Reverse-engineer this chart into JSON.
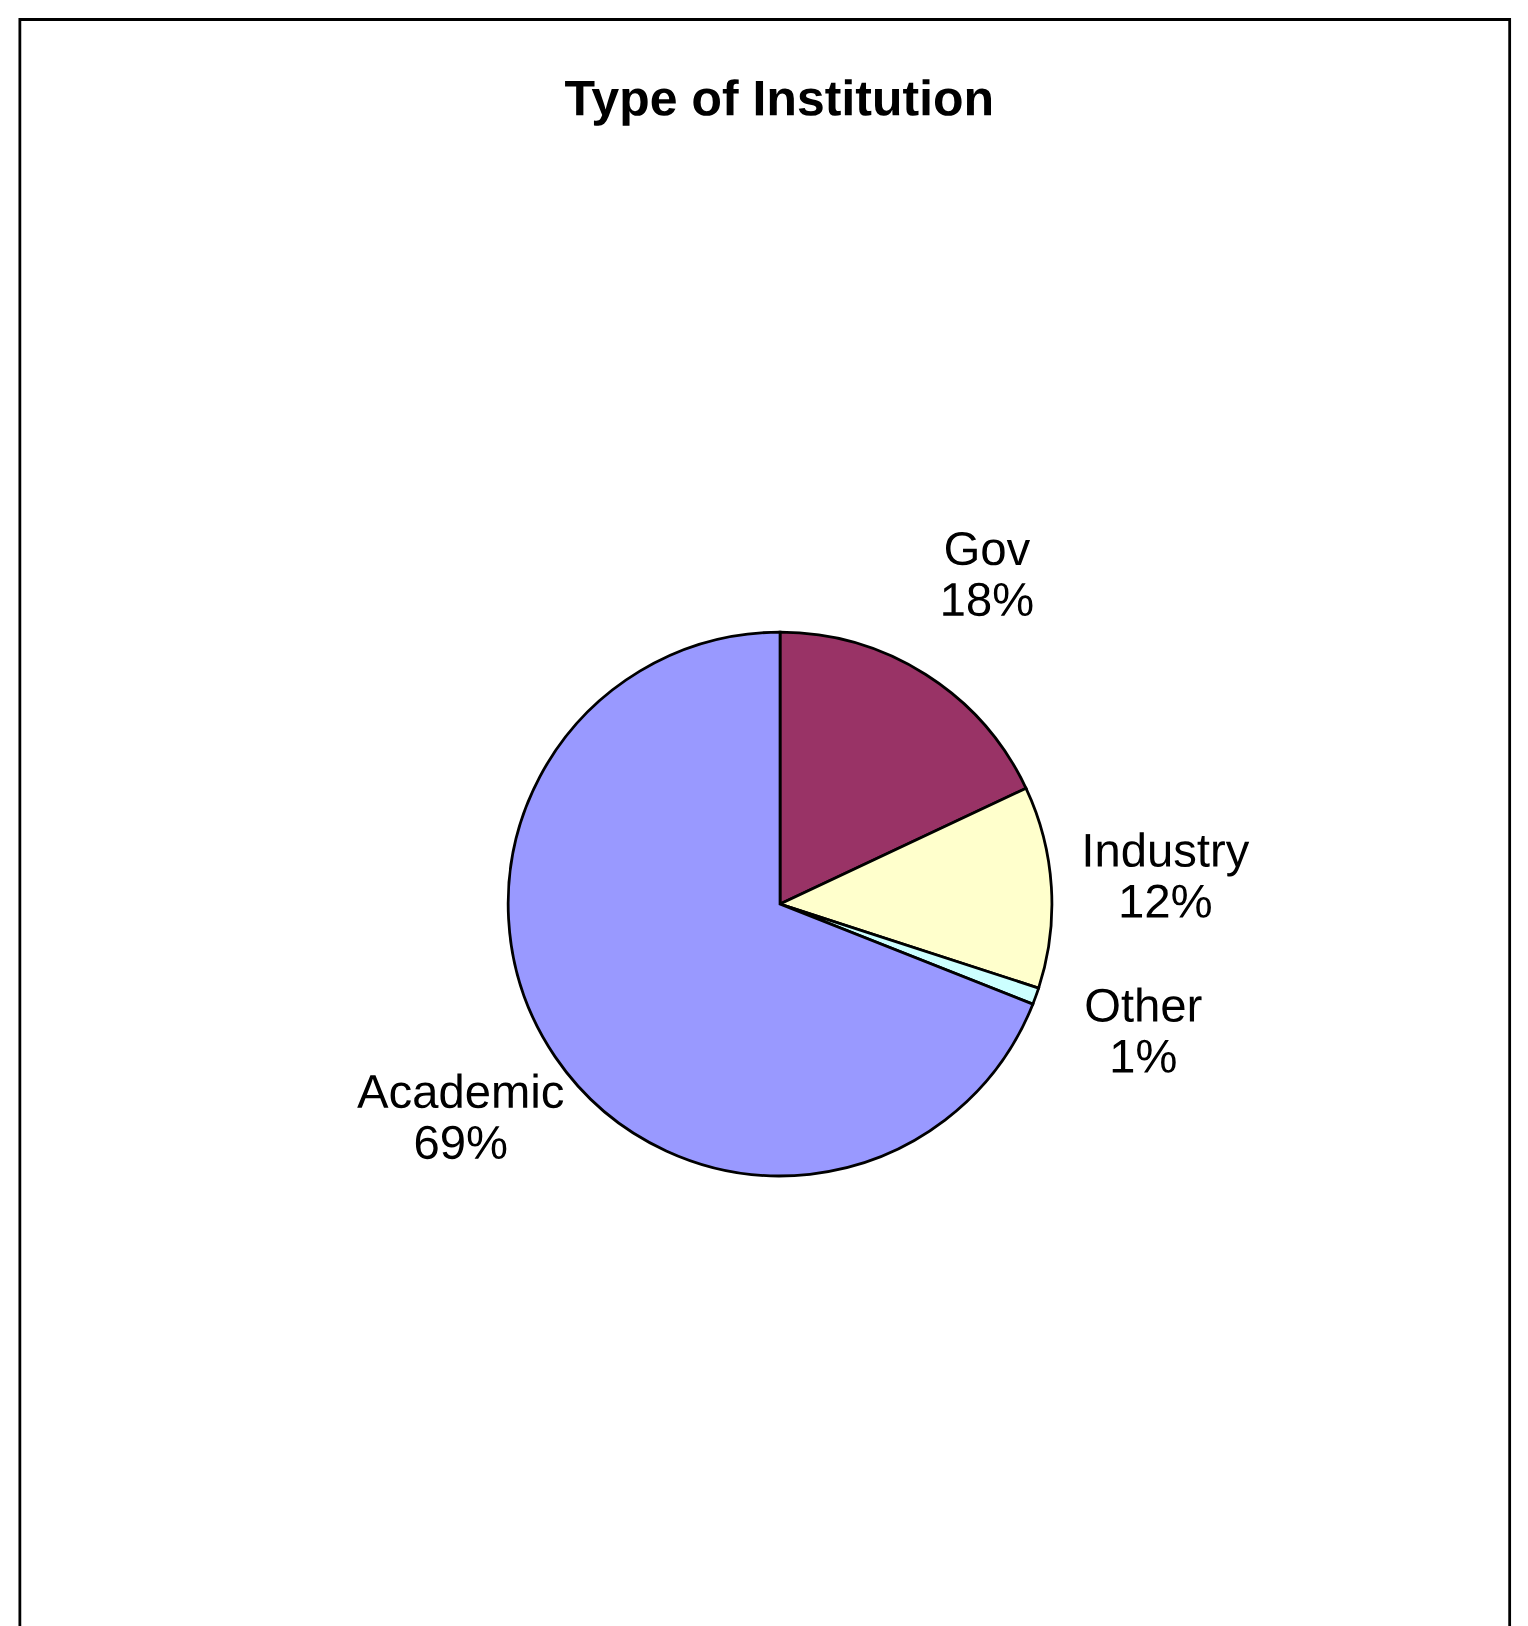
{
  "chart_data": {
    "type": "pie",
    "title": "Type of Institution",
    "categories": [
      "Gov",
      "Industry",
      "Other",
      "Academic"
    ],
    "values": [
      18,
      12,
      1,
      69
    ],
    "value_labels": [
      "18%",
      "12%",
      "1%",
      "69%"
    ],
    "colors": [
      "#993366",
      "#ffffcc",
      "#ccffff",
      "#9999ff"
    ]
  }
}
